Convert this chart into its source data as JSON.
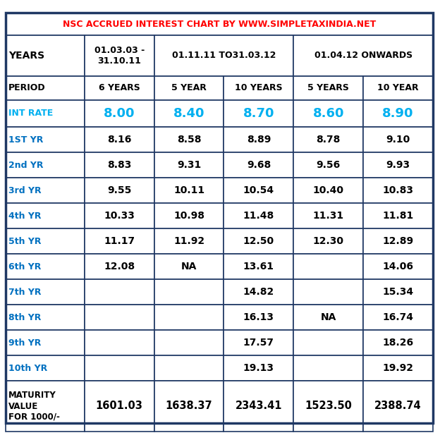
{
  "title": "NSC ACCRUED INTEREST CHART BY WWW.SIMPLETAXINDIA.NET",
  "title_text_color": "#FF0000",
  "title_bg": "#FFFFFF",
  "border_color": "#1F3864",
  "outer_border_color": "#1F3864",
  "periods": [
    "PERIOD",
    "6 YEARS",
    "5 YEAR",
    "10 YEARS",
    "5 YEARS",
    "10 YEAR"
  ],
  "int_rate_label": "INT RATE",
  "int_rates": [
    "8.00",
    "8.40",
    "8.70",
    "8.60",
    "8.90"
  ],
  "int_rate_color": "#00B0F0",
  "row_labels": [
    "1ST YR",
    "2nd YR",
    "3rd YR",
    "4th YR",
    "5th YR",
    "6th YR",
    "7th YR",
    "8th YR",
    "9th YR",
    "10th YR"
  ],
  "row_label_color": "#0070C0",
  "data": [
    [
      "8.16",
      "8.58",
      "8.89",
      "8.78",
      "9.10"
    ],
    [
      "8.83",
      "9.31",
      "9.68",
      "9.56",
      "9.93"
    ],
    [
      "9.55",
      "10.11",
      "10.54",
      "10.40",
      "10.83"
    ],
    [
      "10.33",
      "10.98",
      "11.48",
      "11.31",
      "11.81"
    ],
    [
      "11.17",
      "11.92",
      "12.50",
      "12.30",
      "12.89"
    ],
    [
      "12.08",
      "NA",
      "13.61",
      "",
      "14.06"
    ],
    [
      "",
      "",
      "14.82",
      "",
      "15.34"
    ],
    [
      "",
      "",
      "16.13",
      "NA",
      "16.74"
    ],
    [
      "",
      "",
      "17.57",
      "",
      "18.26"
    ],
    [
      "",
      "",
      "19.13",
      "",
      "19.92"
    ]
  ],
  "maturity_label": "MATURITY\nVALUE\nFOR 1000/-",
  "maturity_values": [
    "1601.03",
    "1638.37",
    "2343.41",
    "1523.50",
    "2388.74"
  ],
  "bg_color": "#FFFFFF",
  "cell_text_color": "#000000"
}
